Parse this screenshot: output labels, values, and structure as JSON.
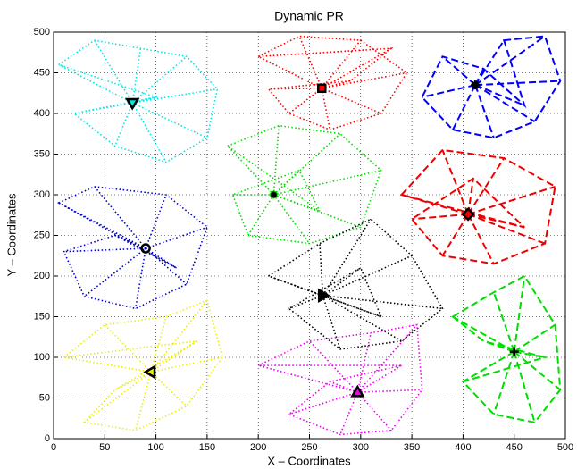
{
  "chart_data": {
    "type": "network",
    "title": "Dynamic PR",
    "xlabel": "X – Coordinates",
    "ylabel": "Y – Coordinates",
    "xlim": [
      0,
      500
    ],
    "ylim": [
      0,
      500
    ],
    "xticks": [
      0,
      50,
      100,
      150,
      200,
      250,
      300,
      350,
      400,
      450,
      500
    ],
    "yticks": [
      0,
      50,
      100,
      150,
      200,
      250,
      300,
      350,
      400,
      450,
      500
    ],
    "grid": true,
    "series": [
      {
        "color": "#00e5e5",
        "line_style": "dotted",
        "marker": "triangle-down",
        "head_x": 77,
        "head_y": 413,
        "x": [
          5,
          40,
          85,
          130,
          160,
          150,
          110,
          60,
          20,
          100
        ],
        "y": [
          460,
          490,
          480,
          470,
          430,
          370,
          340,
          360,
          400,
          420
        ]
      },
      {
        "color": "#ff0000",
        "line_style": "dotted",
        "marker": "square",
        "head_x": 262,
        "head_y": 431,
        "x": [
          200,
          240,
          300,
          345,
          320,
          270,
          230,
          210,
          290,
          330
        ],
        "y": [
          470,
          495,
          490,
          450,
          400,
          380,
          400,
          430,
          440,
          480
        ]
      },
      {
        "color": "#0000ff",
        "line_style": "dashed",
        "marker": "star",
        "head_x": 412,
        "head_y": 435,
        "x": [
          440,
          480,
          495,
          470,
          430,
          390,
          360,
          380,
          420,
          460
        ],
        "y": [
          490,
          495,
          440,
          390,
          370,
          380,
          420,
          470,
          455,
          410
        ]
      },
      {
        "color": "#00dd00",
        "line_style": "dotted",
        "marker": "dot",
        "head_x": 215,
        "head_y": 300,
        "x": [
          170,
          220,
          280,
          320,
          300,
          250,
          190,
          175,
          240,
          260
        ],
        "y": [
          360,
          385,
          375,
          330,
          260,
          240,
          250,
          300,
          330,
          280
        ]
      },
      {
        "color": "#0000cc",
        "line_style": "dotted",
        "marker": "circle",
        "head_x": 90,
        "head_y": 234,
        "x": [
          5,
          40,
          110,
          150,
          130,
          80,
          30,
          10,
          60,
          120
        ],
        "y": [
          290,
          310,
          300,
          260,
          190,
          160,
          175,
          230,
          250,
          210
        ]
      },
      {
        "color": "#ee0000",
        "line_style": "dashed",
        "marker": "diamond",
        "head_x": 405,
        "head_y": 276,
        "x": [
          340,
          380,
          440,
          490,
          480,
          430,
          380,
          350,
          410,
          460
        ],
        "y": [
          300,
          355,
          345,
          310,
          240,
          215,
          225,
          270,
          320,
          260
        ]
      },
      {
        "color": "#000000",
        "line_style": "dotted",
        "marker": "triangle-right",
        "head_x": 263,
        "head_y": 176,
        "x": [
          210,
          260,
          310,
          350,
          380,
          340,
          280,
          230,
          300,
          320
        ],
        "y": [
          200,
          240,
          270,
          225,
          160,
          120,
          110,
          160,
          210,
          150
        ]
      },
      {
        "color": "#00dd00",
        "line_style": "dashed",
        "marker": "plus",
        "head_x": 450,
        "head_y": 107,
        "x": [
          390,
          430,
          460,
          490,
          495,
          470,
          430,
          400,
          480,
          420
        ],
        "y": [
          150,
          180,
          200,
          140,
          60,
          20,
          30,
          70,
          100,
          120
        ]
      },
      {
        "color": "#eeee00",
        "line_style": "dotted",
        "marker": "triangle-left",
        "head_x": 95,
        "head_y": 82,
        "x": [
          10,
          50,
          110,
          150,
          165,
          130,
          80,
          30,
          60,
          140
        ],
        "y": [
          100,
          140,
          150,
          170,
          100,
          40,
          10,
          20,
          60,
          120
        ]
      },
      {
        "color": "#ee00ee",
        "line_style": "dotted",
        "marker": "triangle-up",
        "head_x": 297,
        "head_y": 57,
        "x": [
          200,
          250,
          310,
          355,
          360,
          330,
          280,
          230,
          270,
          340
        ],
        "y": [
          90,
          120,
          130,
          140,
          60,
          10,
          5,
          30,
          70,
          90
        ]
      }
    ]
  }
}
